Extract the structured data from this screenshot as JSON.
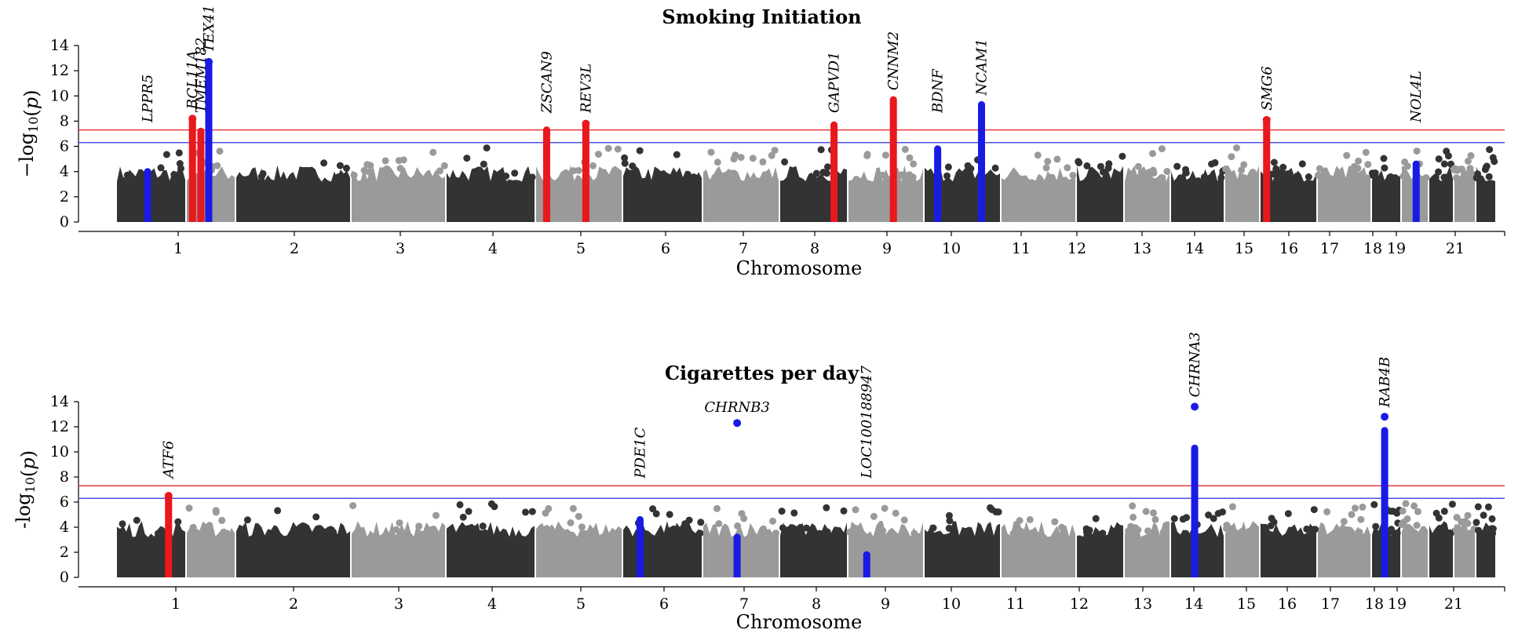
{
  "chart_data": [
    {
      "type": "scatter",
      "title": "Smoking Initiation",
      "xlabel": "Chromosome",
      "ylabel_html": "−log<sub>10</sub>(<i>p</i>)",
      "ylim": [
        0,
        14
      ],
      "yticks": [
        0,
        2,
        4,
        6,
        8,
        10,
        12,
        14
      ],
      "chromosome_tick_labels": [
        "1",
        "2",
        "3",
        "4",
        "5",
        "6",
        "7",
        "8",
        "9",
        "10",
        "11",
        "12",
        "13",
        "14",
        "15",
        "16",
        "17",
        "18",
        "19",
        "21"
      ],
      "thresholds": [
        {
          "value": 7.3,
          "color": "#e8393f"
        },
        {
          "value": 6.3,
          "color": "#4a52e6"
        }
      ],
      "colors": {
        "dark": "#333333",
        "light": "#9a9a9a",
        "red": "#e8181c",
        "blue": "#1a1ae6"
      },
      "genes": [
        {
          "label": "LPPR5",
          "chr": 1,
          "pos": 0.45,
          "max": 4.0,
          "color": "blue",
          "top": null
        },
        {
          "label": "BCL11A",
          "chr": 2,
          "pos": 0.13,
          "max": 8.2,
          "color": "red",
          "top": 8.2
        },
        {
          "label": "TMEM182",
          "chr": 2,
          "pos": 0.3,
          "max": 7.2,
          "color": "red",
          "top": null
        },
        {
          "label": "TEX41",
          "chr": 2,
          "pos": 0.46,
          "max": 12.7,
          "color": "blue",
          "top": 12.7
        },
        {
          "label": "ZSCAN9",
          "chr": 6,
          "pos": 0.13,
          "max": 7.3,
          "color": "red",
          "top": null
        },
        {
          "label": "REV3L",
          "chr": 6,
          "pos": 0.58,
          "max": 7.8,
          "color": "red",
          "top": 7.8
        },
        {
          "label": "GAPVD1",
          "chr": 9,
          "pos": 0.8,
          "max": 7.7,
          "color": "red",
          "top": null
        },
        {
          "label": "CNNM2",
          "chr": 10,
          "pos": 0.6,
          "max": 9.7,
          "color": "red",
          "top": null
        },
        {
          "label": "BDNF",
          "chr": 11,
          "pos": 0.18,
          "max": 5.8,
          "color": "blue",
          "top": null
        },
        {
          "label": "NCAM1",
          "chr": 11,
          "pos": 0.75,
          "max": 9.3,
          "color": "blue",
          "top": null
        },
        {
          "label": "SMG6",
          "chr": 17,
          "pos": 0.12,
          "max": 8.1,
          "color": "red",
          "top": 8.1
        },
        {
          "label": "NOL4L",
          "chr": 20,
          "pos": 0.55,
          "max": 4.6,
          "color": "blue",
          "top": null
        }
      ]
    },
    {
      "type": "scatter",
      "title": "Cigarettes per day",
      "xlabel": "Chromosome",
      "ylabel_html": "-log<sub>10</sub>(<i>p</i>)",
      "ylim": [
        0,
        14
      ],
      "yticks": [
        0,
        2,
        4,
        6,
        8,
        10,
        12,
        14
      ],
      "chromosome_tick_labels": [
        "1",
        "2",
        "3",
        "4",
        "5",
        "6",
        "7",
        "8",
        "9",
        "10",
        "11",
        "12",
        "13",
        "14",
        "15",
        "16",
        "17",
        "18",
        "19",
        "21"
      ],
      "thresholds": [
        {
          "value": 7.3,
          "color": "#e8393f"
        },
        {
          "value": 6.3,
          "color": "#4a52e6"
        }
      ],
      "colors": {
        "dark": "#333333",
        "light": "#9a9a9a",
        "red": "#e8181c",
        "blue": "#1a1ae6"
      },
      "genes": [
        {
          "label": "ATF6",
          "chr": 1,
          "pos": 0.75,
          "max": 6.5,
          "color": "red",
          "top": 6.5
        },
        {
          "label": "PDE1C",
          "chr": 7,
          "pos": 0.22,
          "max": 4.6,
          "color": "blue",
          "top": null
        },
        {
          "label": "CHRNB3",
          "chr": 8,
          "pos": 0.45,
          "max": 3.2,
          "color": "blue",
          "top": 12.3
        },
        {
          "label": "LOC100188947",
          "chr": 10,
          "pos": 0.25,
          "max": 1.8,
          "color": "blue",
          "top": null
        },
        {
          "label": "CHRNA3",
          "chr": 15,
          "pos": 0.45,
          "max": 10.3,
          "color": "blue",
          "top": 13.6
        },
        {
          "label": "RAB4B",
          "chr": 19,
          "pos": 0.45,
          "max": 11.7,
          "color": "blue",
          "top": 12.8
        }
      ]
    }
  ]
}
